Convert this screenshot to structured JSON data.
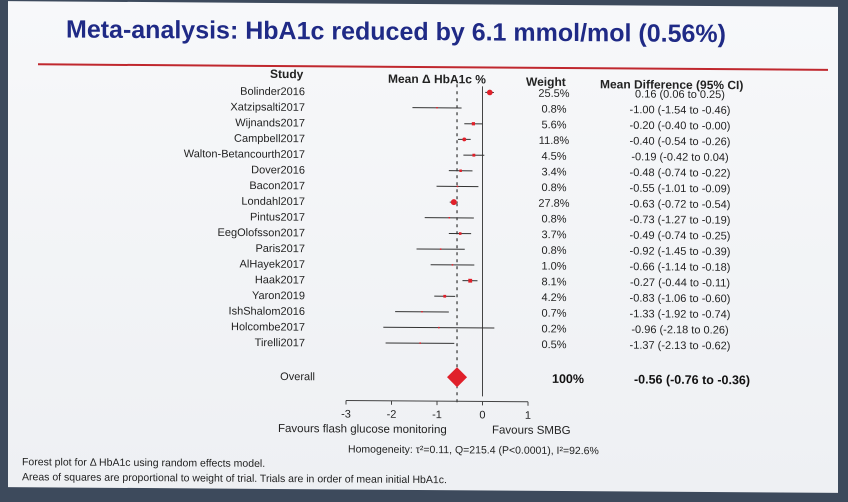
{
  "title": "Meta-analysis:  HbA1c reduced by 6.1 mmol/mol (0.56%)",
  "headers": {
    "study": "Study",
    "mean": "Mean Δ HbA1c %",
    "weight": "Weight",
    "diff": "Mean Difference (95% CI)"
  },
  "colors": {
    "title": "#1f2a86",
    "rule": "#c0282e",
    "marker": "#e0202a",
    "overall": "#e0202a"
  },
  "chart_data": {
    "type": "forest",
    "xlim": [
      -3,
      1
    ],
    "xticks": [
      "-3",
      "-2",
      "-1",
      "0",
      "1"
    ],
    "xlabel_left": "Favours flash glucose monitoring",
    "xlabel_right": "Favours SMBG",
    "studies": [
      {
        "name": "Bolinder2016",
        "weight": "25.5%",
        "ci": "0.16 (0.06 to 0.25)",
        "md": 0.16,
        "lo": 0.06,
        "hi": 0.25,
        "w": 25.5
      },
      {
        "name": "Xatzipsalti2017",
        "weight": "0.8%",
        "ci": "-1.00 (-1.54 to -0.46)",
        "md": -1.0,
        "lo": -1.54,
        "hi": -0.46,
        "w": 0.8
      },
      {
        "name": "Wijnands2017",
        "weight": "5.6%",
        "ci": "-0.20 (-0.40 to -0.00)",
        "md": -0.2,
        "lo": -0.4,
        "hi": -0.0,
        "w": 5.6
      },
      {
        "name": "Campbell2017",
        "weight": "11.8%",
        "ci": "-0.40 (-0.54 to -0.26)",
        "md": -0.4,
        "lo": -0.54,
        "hi": -0.26,
        "w": 11.8
      },
      {
        "name": "Walton-Betancourth2017",
        "weight": "4.5%",
        "ci": "-0.19 (-0.42 to 0.04)",
        "md": -0.19,
        "lo": -0.42,
        "hi": 0.04,
        "w": 4.5
      },
      {
        "name": "Dover2016",
        "weight": "3.4%",
        "ci": "-0.48 (-0.74 to -0.22)",
        "md": -0.48,
        "lo": -0.74,
        "hi": -0.22,
        "w": 3.4
      },
      {
        "name": "Bacon2017",
        "weight": "0.8%",
        "ci": "-0.55 (-1.01 to -0.09)",
        "md": -0.55,
        "lo": -1.01,
        "hi": -0.09,
        "w": 0.8
      },
      {
        "name": "Londahl2017",
        "weight": "27.8%",
        "ci": "-0.63 (-0.72 to -0.54)",
        "md": -0.63,
        "lo": -0.72,
        "hi": -0.54,
        "w": 27.8
      },
      {
        "name": "Pintus2017",
        "weight": "0.8%",
        "ci": "-0.73 (-1.27 to -0.19)",
        "md": -0.73,
        "lo": -1.27,
        "hi": -0.19,
        "w": 0.8
      },
      {
        "name": "EegOlofsson2017",
        "weight": "3.7%",
        "ci": "-0.49 (-0.74 to -0.25)",
        "md": -0.49,
        "lo": -0.74,
        "hi": -0.25,
        "w": 3.7
      },
      {
        "name": "Paris2017",
        "weight": "0.8%",
        "ci": "-0.92 (-1.45 to -0.39)",
        "md": -0.92,
        "lo": -1.45,
        "hi": -0.39,
        "w": 0.8
      },
      {
        "name": "AlHayek2017",
        "weight": "1.0%",
        "ci": "-0.66 (-1.14 to -0.18)",
        "md": -0.66,
        "lo": -1.14,
        "hi": -0.18,
        "w": 1.0
      },
      {
        "name": "Haak2017",
        "weight": "8.1%",
        "ci": "-0.27 (-0.44 to -0.11)",
        "md": -0.27,
        "lo": -0.44,
        "hi": -0.11,
        "w": 8.1
      },
      {
        "name": "Yaron2019",
        "weight": "4.2%",
        "ci": "-0.83 (-1.06 to -0.60)",
        "md": -0.83,
        "lo": -1.06,
        "hi": -0.6,
        "w": 4.2
      },
      {
        "name": "IshShalom2016",
        "weight": "0.7%",
        "ci": "-1.33 (-1.92 to -0.74)",
        "md": -1.33,
        "lo": -1.92,
        "hi": -0.74,
        "w": 0.7
      },
      {
        "name": "Holcombe2017",
        "weight": "0.2%",
        "ci": "-0.96 (-2.18 to 0.26)",
        "md": -0.96,
        "lo": -2.18,
        "hi": 0.26,
        "w": 0.2
      },
      {
        "name": "Tirelli2017",
        "weight": "0.5%",
        "ci": "-1.37 (-2.13 to -0.62)",
        "md": -1.37,
        "lo": -2.13,
        "hi": -0.62,
        "w": 0.5
      }
    ],
    "overall": {
      "name": "Overall",
      "weight": "100%",
      "ci": "-0.56 (-0.76 to -0.36)",
      "md": -0.56,
      "lo": -0.76,
      "hi": -0.36
    }
  },
  "homogeneity": "Homogeneity: τ²=0.11, Q=215.4 (P<0.0001), I²=92.6%",
  "footnote1": "Forest plot for Δ HbA1c using random effects model.",
  "footnote2": "Areas of squares are proportional to weight of trial.  Trials are in order of mean initial HbA1c."
}
